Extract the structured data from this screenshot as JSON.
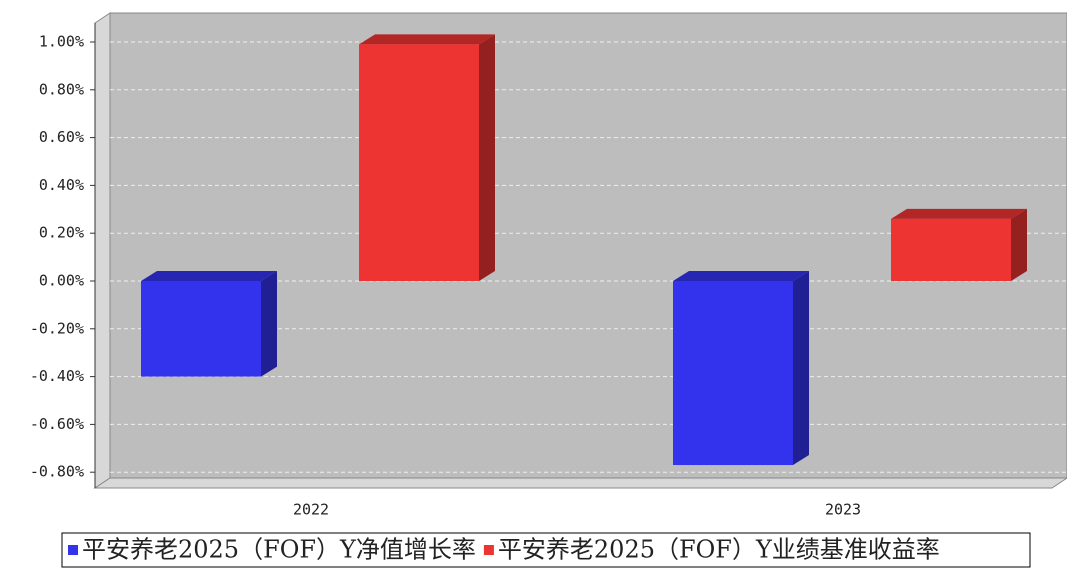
{
  "chart_data": {
    "type": "bar3d",
    "categories": [
      "2022",
      "2023"
    ],
    "series": [
      {
        "name": "平安养老2025（FOF）Y净值增长率",
        "color": "#3333ee",
        "values": [
          -0.4,
          -0.77
        ]
      },
      {
        "name": "平安养老2025（FOF）Y业绩基准收益率",
        "color": "#ee3333",
        "values": [
          0.99,
          0.26
        ]
      }
    ],
    "ylim": [
      -0.84,
      1.12
    ],
    "yticks": [
      {
        "value": -0.8,
        "label": "-0.80%"
      },
      {
        "value": -0.6,
        "label": "-0.60%"
      },
      {
        "value": -0.4,
        "label": "-0.40%"
      },
      {
        "value": -0.2,
        "label": "-0.20%"
      },
      {
        "value": 0,
        "label": "0.00%"
      },
      {
        "value": 0.2,
        "label": "0.20%"
      },
      {
        "value": 0.4,
        "label": "0.40%"
      },
      {
        "value": 0.6,
        "label": "0.60%"
      },
      {
        "value": 0.8,
        "label": "0.80%"
      },
      {
        "value": 1,
        "label": "1.00%"
      }
    ],
    "grid": true
  }
}
